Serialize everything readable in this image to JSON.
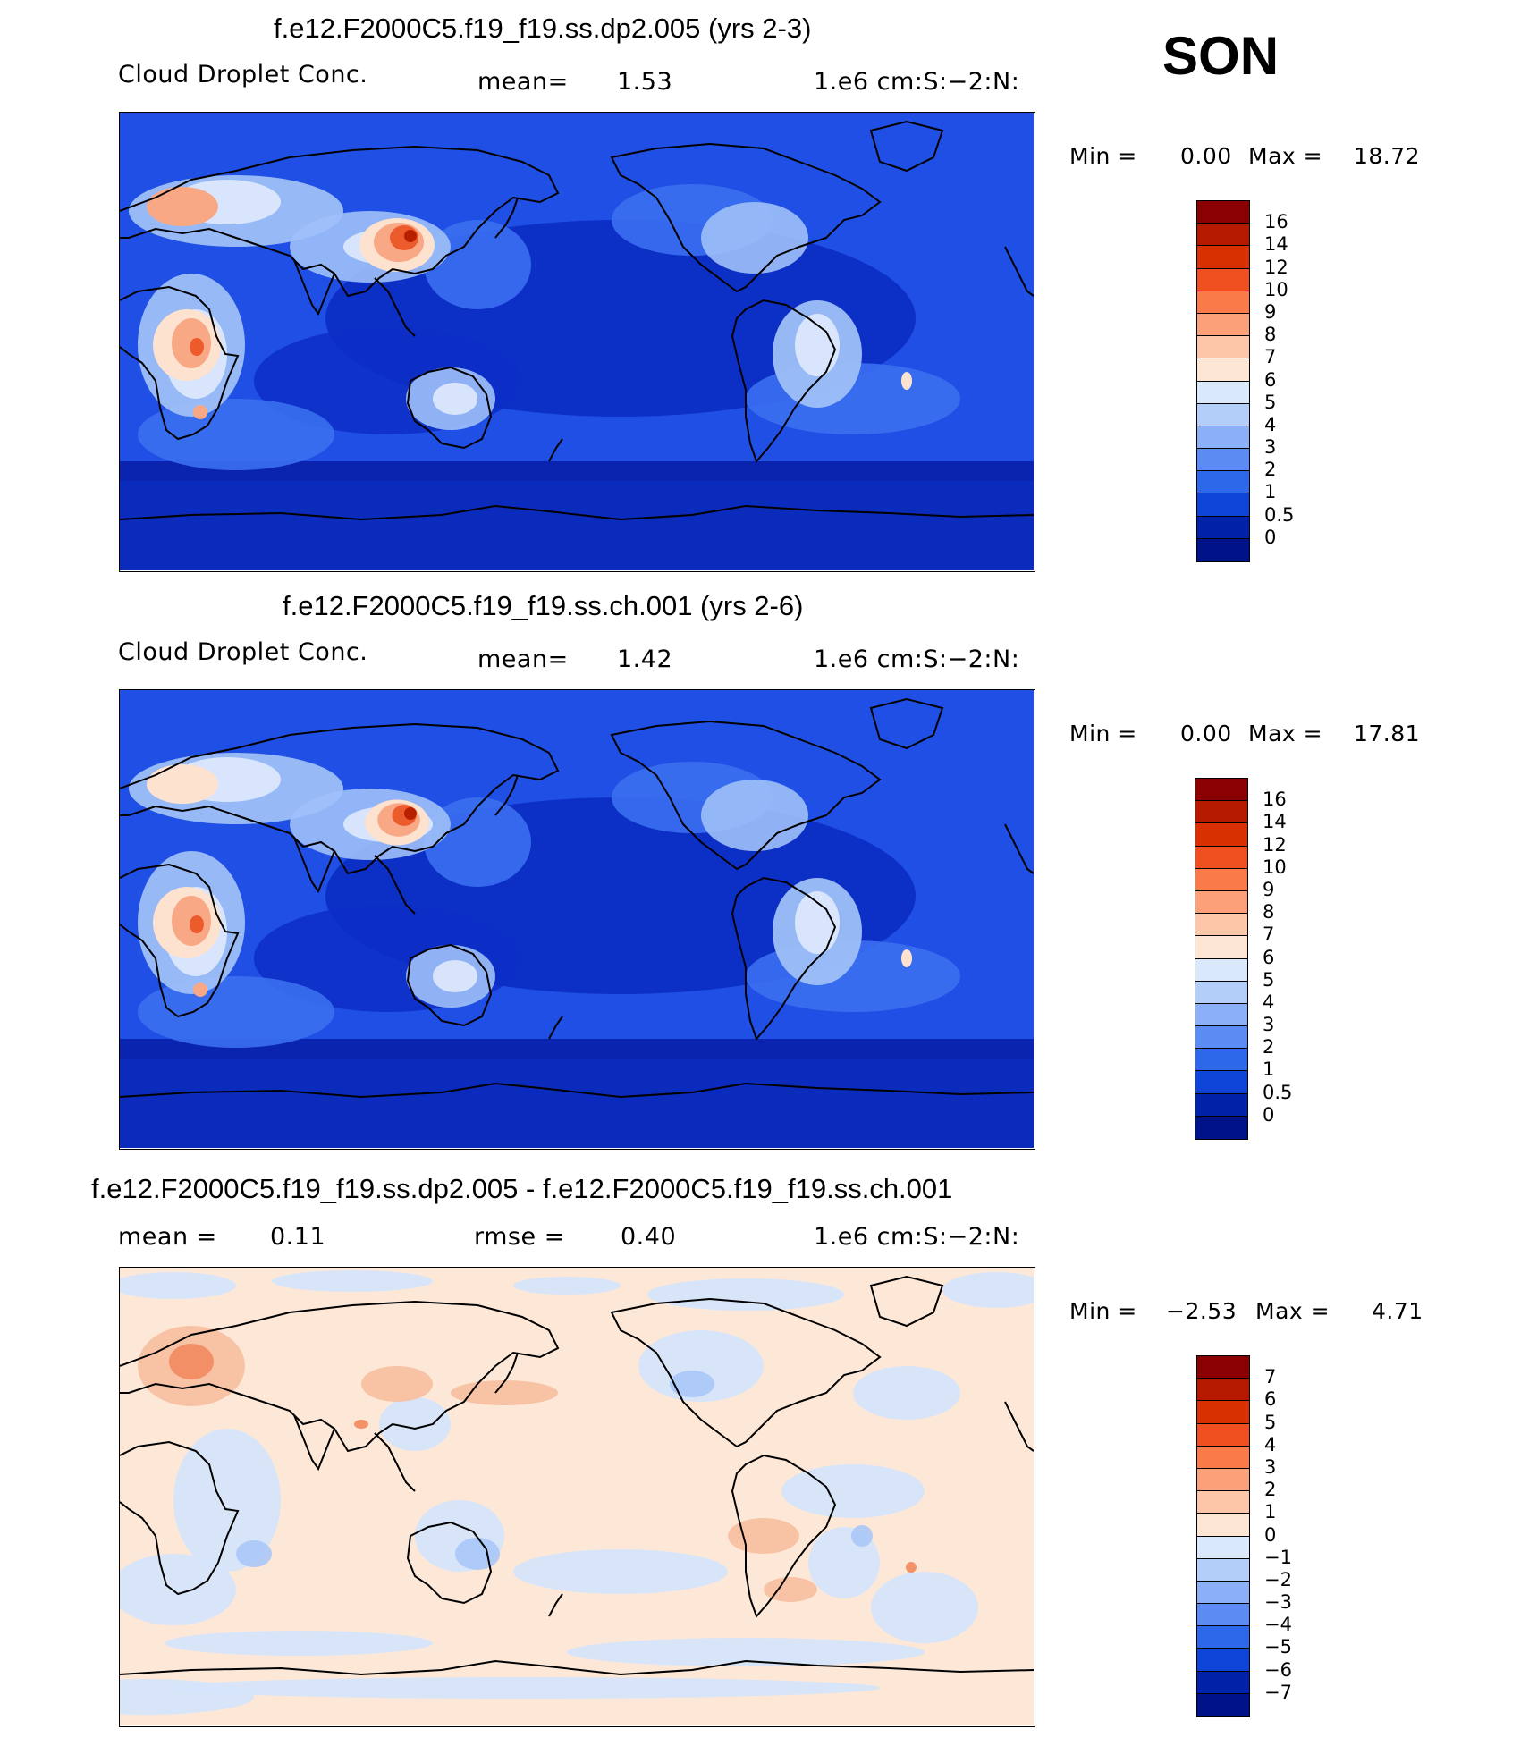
{
  "season": "SON",
  "panels": [
    {
      "title": "f.e12.F2000C5.f19_f19.ss.dp2.005 (yrs 2-3)",
      "left_label": "Cloud Droplet Conc.",
      "mid_label": "mean=",
      "mid_value": "1.53",
      "units": "1.e6 cm:S:−2:N:",
      "min_label": "Min =",
      "min_value": "0.00",
      "max_label": "Max =",
      "max_value": "18.72",
      "colorbar": {
        "labels": [
          "16",
          "14",
          "12",
          "10",
          "9",
          "8",
          "7",
          "6",
          "5",
          "4",
          "3",
          "2",
          "1",
          "0.5",
          "0"
        ],
        "colors": [
          "#8b0000",
          "#b51a00",
          "#d83000",
          "#f05020",
          "#fa7a4a",
          "#fca07a",
          "#fdc6a8",
          "#fee6d4",
          "#d9e8fb",
          "#b4cefa",
          "#8bb0f8",
          "#5a8cf4",
          "#2e68ea",
          "#0f44d8",
          "#0022a8",
          "#001288"
        ]
      }
    },
    {
      "title": "f.e12.F2000C5.f19_f19.ss.ch.001 (yrs 2-6)",
      "left_label": "Cloud Droplet Conc.",
      "mid_label": "mean=",
      "mid_value": "1.42",
      "units": "1.e6 cm:S:−2:N:",
      "min_label": "Min =",
      "min_value": "0.00",
      "max_label": "Max =",
      "max_value": "17.81",
      "colorbar": {
        "labels": [
          "16",
          "14",
          "12",
          "10",
          "9",
          "8",
          "7",
          "6",
          "5",
          "4",
          "3",
          "2",
          "1",
          "0.5",
          "0"
        ],
        "colors": [
          "#8b0000",
          "#b51a00",
          "#d83000",
          "#f05020",
          "#fa7a4a",
          "#fca07a",
          "#fdc6a8",
          "#fee6d4",
          "#d9e8fb",
          "#b4cefa",
          "#8bb0f8",
          "#5a8cf4",
          "#2e68ea",
          "#0f44d8",
          "#0022a8",
          "#001288"
        ]
      }
    },
    {
      "title": "f.e12.F2000C5.f19_f19.ss.dp2.005 - f.e12.F2000C5.f19_f19.ss.ch.001",
      "left_label": "mean =",
      "left_value": "0.11",
      "mid_label": "rmse =",
      "mid_value": "0.40",
      "units": "1.e6 cm:S:−2:N:",
      "min_label": "Min =",
      "min_value": "−2.53",
      "max_label": "Max =",
      "max_value": "4.71",
      "colorbar": {
        "labels": [
          "7",
          "6",
          "5",
          "4",
          "3",
          "2",
          "1",
          "0",
          "−1",
          "−2",
          "−3",
          "−4",
          "−5",
          "−6",
          "−7"
        ],
        "colors": [
          "#8b0000",
          "#b51a00",
          "#d83000",
          "#f05020",
          "#fa7a4a",
          "#fca07a",
          "#fdc6a8",
          "#fee6d4",
          "#d9e8fb",
          "#b4cefa",
          "#8bb0f8",
          "#5a8cf4",
          "#2e68ea",
          "#0f44d8",
          "#0022a8",
          "#001288"
        ]
      }
    }
  ],
  "map_colors": {
    "ocean_deep": "#0c2fc6",
    "ocean_mid": "#1f4fe4",
    "ocean_light": "#3a6ff0",
    "southern": "#0a24b0",
    "antarctic": "#0b2bbd",
    "land_light": "#9ec0f8",
    "land_pale": "#dbe7fc",
    "hot_pale": "#fde2cf",
    "hot_mid": "#f9a886",
    "hot_high": "#ec5b2c",
    "hot_peak": "#b82100",
    "diff_base": "#fde8d8",
    "diff_blue": "#d6e5fb",
    "diff_blue_mid": "#aac6f7",
    "diff_red": "#f8c0a2",
    "diff_red_mid": "#f28c63",
    "coast": "#000000"
  }
}
